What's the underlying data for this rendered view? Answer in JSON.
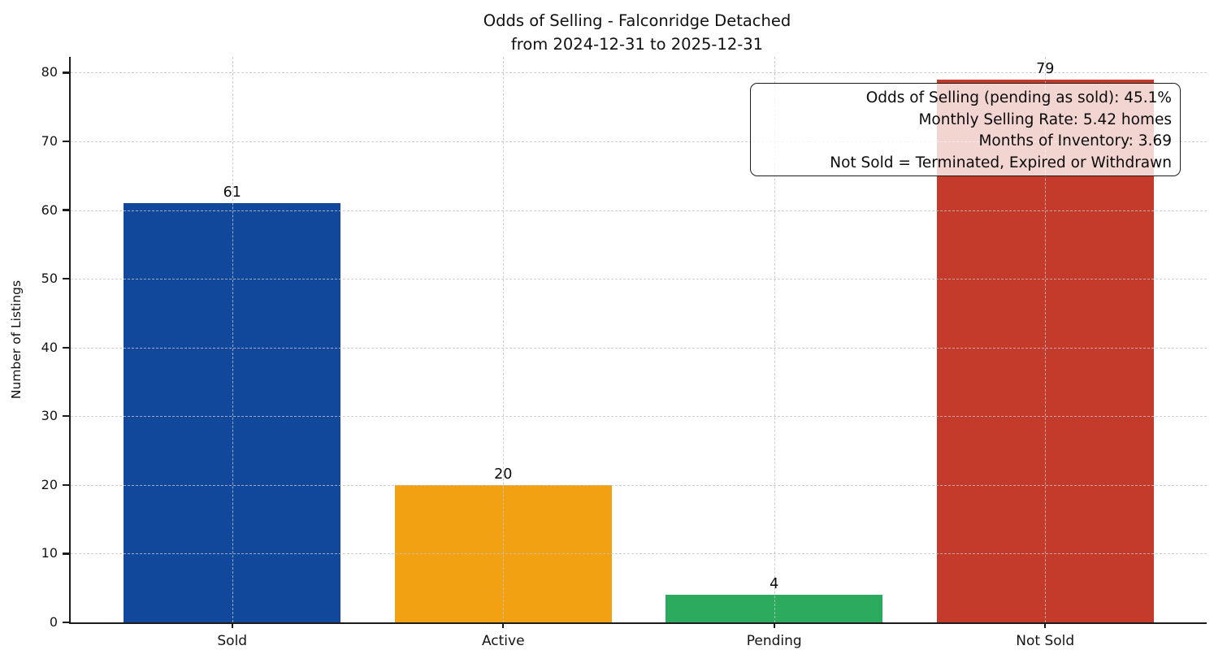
{
  "figure": {
    "background": "#ffffff"
  },
  "chart_data": {
    "type": "bar",
    "title": "Odds of Selling - Falconridge Detached",
    "subtitle": "from 2024-12-31 to 2025-12-31",
    "categories": [
      "Sold",
      "Active",
      "Pending",
      "Not Sold"
    ],
    "values": [
      61,
      20,
      4,
      79
    ],
    "bar_colors": [
      "#11489c",
      "#f2a113",
      "#2caa5e",
      "#c43b2c"
    ],
    "xlabel": "",
    "ylabel": "Number of Listings",
    "yticks": [
      0,
      10,
      20,
      30,
      40,
      50,
      60,
      70,
      80
    ],
    "ylim": [
      0,
      82.3
    ],
    "grid": true,
    "grid_style": "dashed",
    "grid_color": "#c4c4c4",
    "spine_color": "#1c1c1c",
    "bar_relative_width": 0.8,
    "legend": "none",
    "annotation": {
      "position": "top-right",
      "lines": [
        "Odds of Selling (pending as sold): 45.1%",
        "Monthly Selling Rate: 5.42 homes",
        "Months of Inventory: 3.69",
        "Not Sold = Terminated, Expired or Withdrawn"
      ]
    }
  }
}
